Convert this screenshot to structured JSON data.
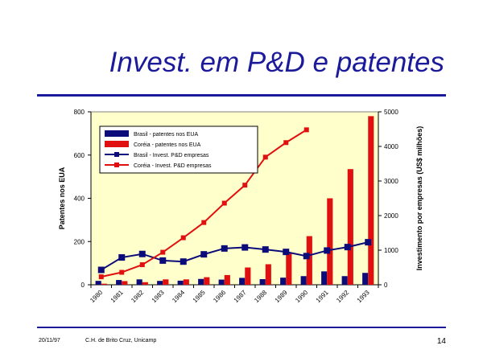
{
  "slide": {
    "title": "Invest. em P&D e patentes",
    "footer_date": "20/11/97",
    "footer_author": "C.H. de Brito Cruz, Unicamp",
    "page_number": "14"
  },
  "chart_data": {
    "type": "bar",
    "categories": [
      "1980",
      "1981",
      "1982",
      "1983",
      "1984",
      "1985",
      "1986",
      "1987",
      "1988",
      "1989",
      "1990",
      "1991",
      "1992",
      "1993"
    ],
    "ylabel": "Patentes nos EUA",
    "y2label": "Investimento por empresas (US$ milhões)",
    "ylim": [
      0,
      800
    ],
    "y2lim": [
      0,
      5000
    ],
    "yticks": [
      "0",
      "200",
      "400",
      "600",
      "800"
    ],
    "y2ticks": [
      "0",
      "1000",
      "2000",
      "3000",
      "4000",
      "5000"
    ],
    "legend_position": "top-left",
    "series": [
      {
        "name": "Brasil - patentes nos EUA",
        "type": "bar",
        "axis": "left",
        "color": "#0b0b7a",
        "values": [
          18,
          22,
          25,
          18,
          19,
          27,
          24,
          32,
          26,
          33,
          40,
          62,
          40,
          55
        ]
      },
      {
        "name": "Coréia - patentes nos EUA",
        "type": "bar",
        "axis": "left",
        "color": "#e01010",
        "values": [
          5,
          17,
          12,
          25,
          25,
          35,
          45,
          80,
          95,
          150,
          225,
          400,
          535,
          780
        ]
      },
      {
        "name": "Brasil - Invest. P&D empresas",
        "type": "line",
        "axis": "right",
        "color": "#0b0b7a",
        "marker": "square",
        "values": [
          430,
          790,
          890,
          700,
          670,
          880,
          1050,
          1080,
          1020,
          950,
          830,
          990,
          1090,
          1230
        ]
      },
      {
        "name": "Coréia - Invest. P&D empresas",
        "type": "line",
        "axis": "right",
        "color": "#e01010",
        "marker": "square",
        "values": [
          230,
          360,
          580,
          940,
          1360,
          1800,
          2360,
          2880,
          3690,
          4110,
          4480,
          null,
          null,
          null
        ]
      }
    ]
  }
}
